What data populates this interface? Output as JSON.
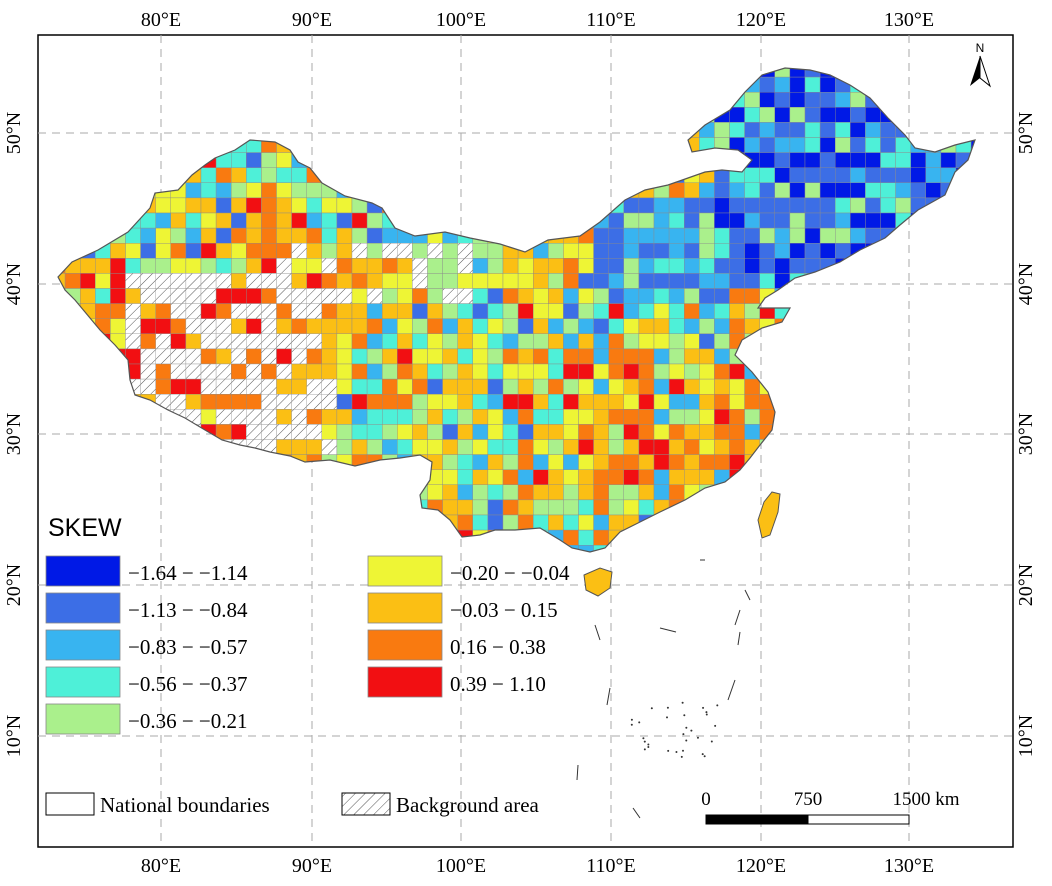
{
  "map": {
    "x_ticks": [
      "80°E",
      "90°E",
      "100°E",
      "110°E",
      "120°E",
      "130°E"
    ],
    "y_ticks": [
      "50°N",
      "40°N",
      "30°N",
      "20°N",
      "10°N"
    ],
    "north_arrow": "N"
  },
  "legend": {
    "title": "SKEW",
    "classes": [
      {
        "label": "−1.64 − −1.14",
        "color": "#0019e6"
      },
      {
        "label": "−1.13 − −0.84",
        "color": "#3c6ee6"
      },
      {
        "label": "−0.83 − −0.57",
        "color": "#38b4f0"
      },
      {
        "label": "−0.56 − −0.37",
        "color": "#4ef0d8"
      },
      {
        "label": "−0.36 − −0.21",
        "color": "#aaf08c"
      },
      {
        "label": "−0.20 − −0.04",
        "color": "#eef535"
      },
      {
        "label": "−0.03 − 0.15",
        "color": "#fbbf14"
      },
      {
        "label": "0.16 − 0.38",
        "color": "#f97a10"
      },
      {
        "label": "0.39 − 1.10",
        "color": "#f20f12"
      }
    ],
    "boundary_label": "National boundaries",
    "background_label": "Background area"
  },
  "scale_bar": {
    "labels": [
      "0",
      "750",
      "1500 km"
    ]
  }
}
